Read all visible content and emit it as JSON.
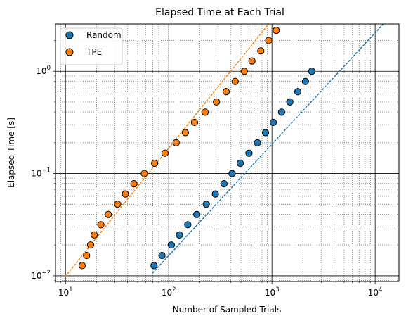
{
  "chart_data": {
    "type": "scatter",
    "title": "Elapsed Time at Each Trial",
    "xlabel": "Number of Sampled Trials",
    "ylabel": "Elapsed Time [s]",
    "xscale": "log",
    "yscale": "log",
    "xlim": [
      8,
      17000
    ],
    "ylim": [
      0.0088,
      2.9
    ],
    "grid": "major solid, minor dotted",
    "legend_position": "top-left",
    "x_ticks": [
      {
        "base": "10",
        "exp": "1",
        "value": 10
      },
      {
        "base": "10",
        "exp": "2",
        "value": 100
      },
      {
        "base": "10",
        "exp": "3",
        "value": 1000
      },
      {
        "base": "10",
        "exp": "4",
        "value": 10000
      }
    ],
    "y_ticks": [
      {
        "base": "10",
        "exp": "−2",
        "value": 0.01
      },
      {
        "base": "10",
        "exp": "−1",
        "value": 0.1
      },
      {
        "base": "10",
        "exp": "0",
        "value": 1
      }
    ],
    "series": [
      {
        "name": "Random",
        "color": "#1f77b4",
        "points": [
          [
            72,
            0.0126
          ],
          [
            86,
            0.0158
          ],
          [
            106,
            0.02
          ],
          [
            127,
            0.0251
          ],
          [
            153,
            0.0316
          ],
          [
            187,
            0.0398
          ],
          [
            231,
            0.0501
          ],
          [
            283,
            0.0631
          ],
          [
            343,
            0.0794
          ],
          [
            411,
            0.1
          ],
          [
            493,
            0.126
          ],
          [
            599,
            0.158
          ],
          [
            723,
            0.2
          ],
          [
            866,
            0.251
          ],
          [
            1030,
            0.316
          ],
          [
            1240,
            0.398
          ],
          [
            1490,
            0.501
          ],
          [
            1780,
            0.631
          ],
          [
            2110,
            0.794
          ],
          [
            2430,
            1.0
          ]
        ],
        "fit": [
          [
            70,
            0.0107
          ],
          [
            12000,
            2.9
          ]
        ]
      },
      {
        "name": "TPE",
        "color": "#ff7f0e",
        "points": [
          [
            14.5,
            0.0126
          ],
          [
            16,
            0.0158
          ],
          [
            17.5,
            0.02
          ],
          [
            19,
            0.0251
          ],
          [
            22,
            0.0316
          ],
          [
            26,
            0.0398
          ],
          [
            32,
            0.0501
          ],
          [
            38,
            0.0631
          ],
          [
            46,
            0.0794
          ],
          [
            58,
            0.1
          ],
          [
            73,
            0.126
          ],
          [
            92,
            0.158
          ],
          [
            118,
            0.2
          ],
          [
            145,
            0.251
          ],
          [
            178,
            0.316
          ],
          [
            225,
            0.398
          ],
          [
            290,
            0.501
          ],
          [
            360,
            0.631
          ],
          [
            440,
            0.794
          ],
          [
            540,
            1.0
          ],
          [
            640,
            1.26
          ],
          [
            780,
            1.58
          ],
          [
            930,
            2.0
          ],
          [
            1100,
            2.51
          ]
        ],
        "fit": [
          [
            10,
            0.0099
          ],
          [
            930,
            2.9
          ]
        ]
      }
    ]
  }
}
